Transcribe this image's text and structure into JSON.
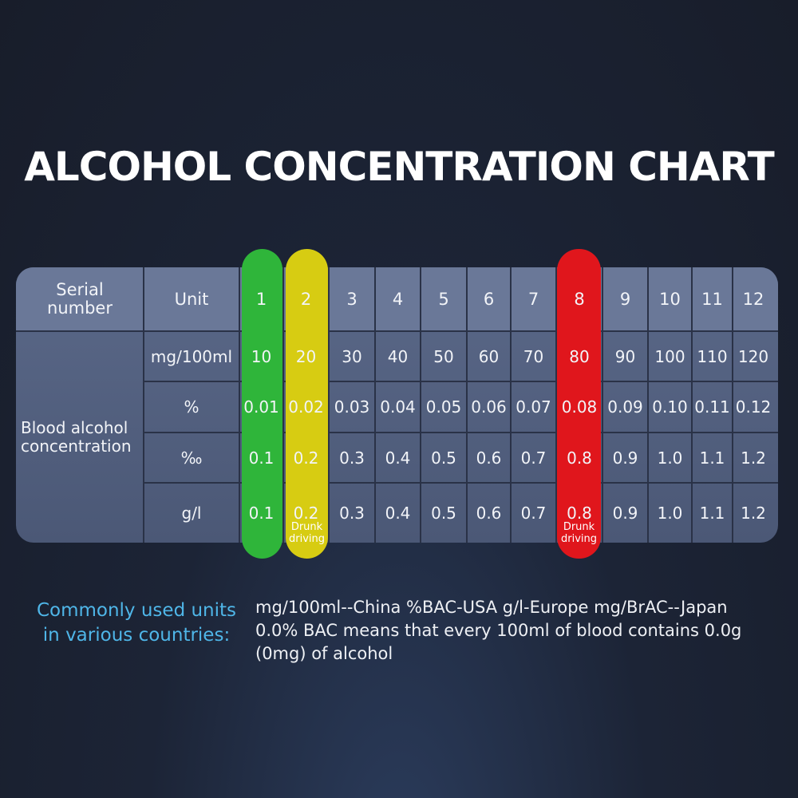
{
  "title": "ALCOHOL CONCENTRATION CHART",
  "table": {
    "header": [
      "Serial number",
      "Unit",
      "1",
      "2",
      "3",
      "4",
      "5",
      "6",
      "7",
      "8",
      "9",
      "10",
      "11",
      "12"
    ],
    "group_label": "Blood alcohol concentration",
    "rows": [
      {
        "unit": "mg/100ml",
        "values": [
          "10",
          "20",
          "30",
          "40",
          "50",
          "60",
          "70",
          "80",
          "90",
          "100",
          "110",
          "120"
        ]
      },
      {
        "unit": "%",
        "values": [
          "0.01",
          "0.02",
          "0.03",
          "0.04",
          "0.05",
          "0.06",
          "0.07",
          "0.08",
          "0.09",
          "0.10",
          "0.11",
          "0.12"
        ]
      },
      {
        "unit": "‰",
        "values": [
          "0.1",
          "0.2",
          "0.3",
          "0.4",
          "0.5",
          "0.6",
          "0.7",
          "0.8",
          "0.9",
          "1.0",
          "1.1",
          "1.2"
        ]
      },
      {
        "unit": "g/l",
        "values": [
          "0.1",
          "0.2",
          "0.3",
          "0.4",
          "0.5",
          "0.6",
          "0.7",
          "0.8",
          "0.9",
          "1.0",
          "1.1",
          "1.2"
        ]
      }
    ],
    "notes": [
      "Drunk driving",
      "Drunk driving"
    ]
  },
  "footer": {
    "label": "Commonly used units in various countries:",
    "lines": [
      "mg/100ml--China %BAC-USA g/l-Europe mg/BrAC--Japan",
      "0.0% BAC means that every 100ml of blood contains 0.0g",
      "(0mg) of alcohol"
    ]
  }
}
